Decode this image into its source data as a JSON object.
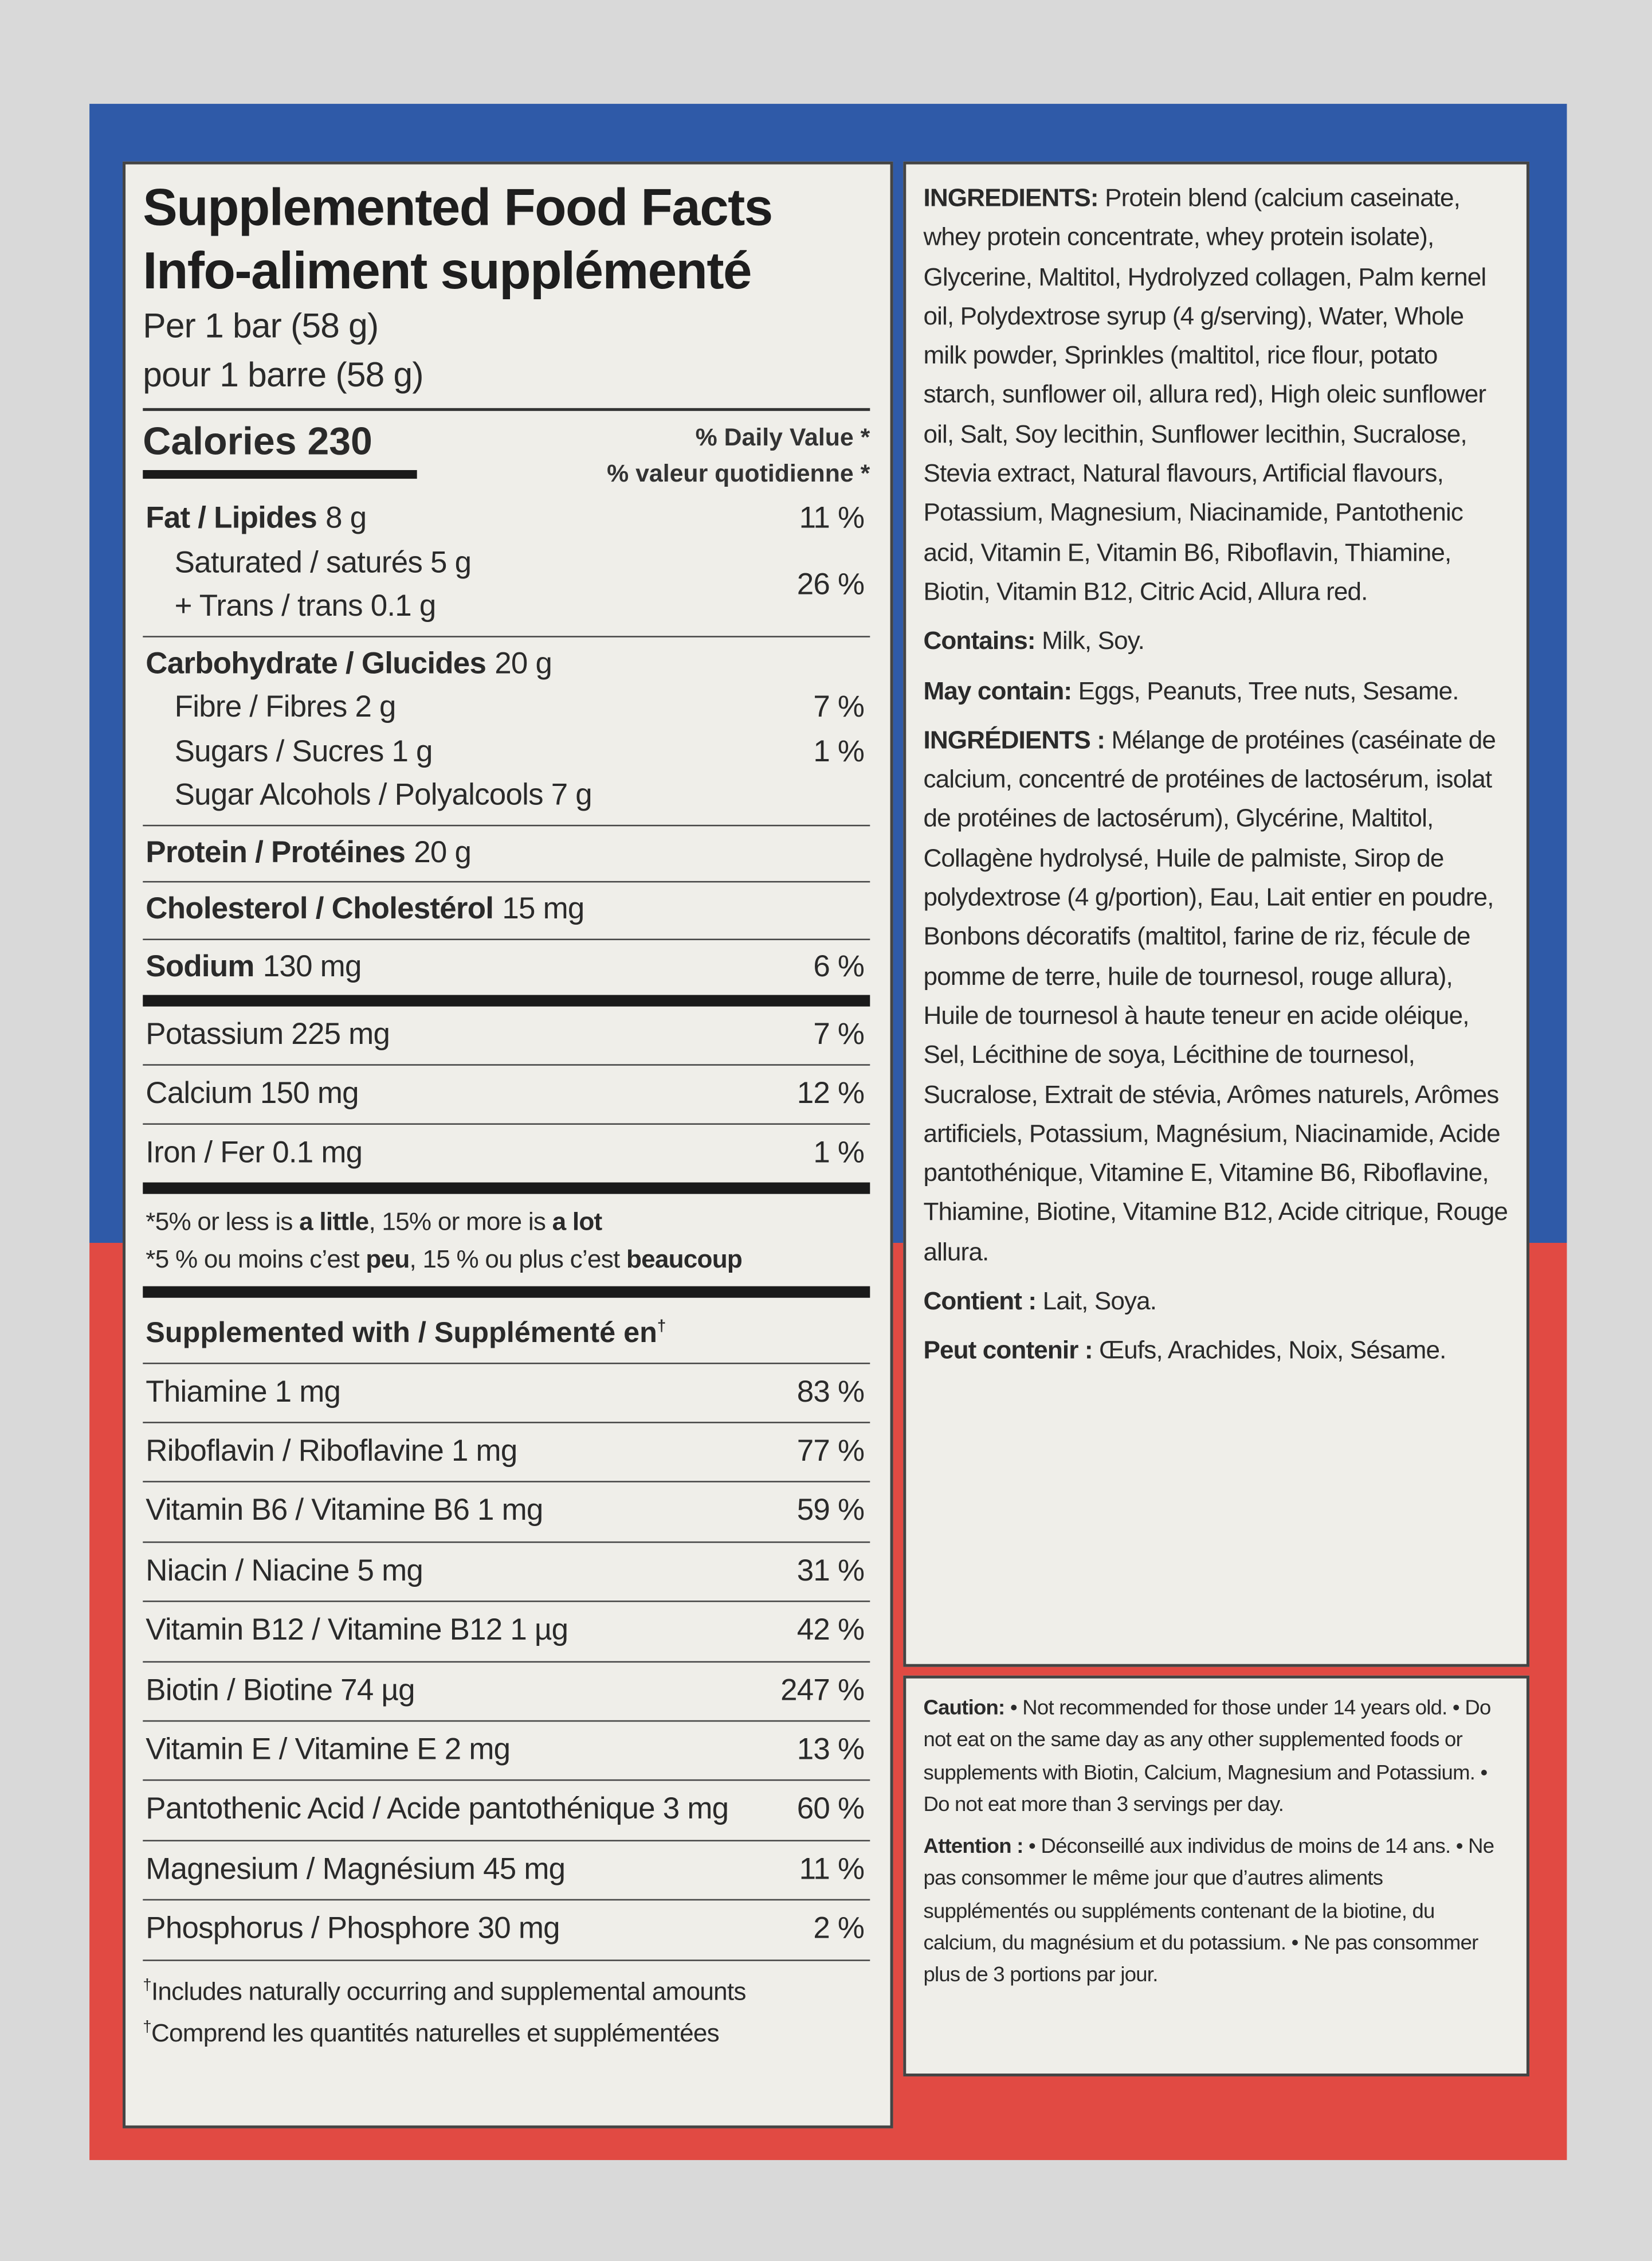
{
  "facts": {
    "title": "Supplemented Food Facts",
    "title_fr": "Info-aliment supplémenté",
    "serving": "Per 1 bar (58 g)",
    "serving_fr": "pour 1 barre (58 g)",
    "calories": "Calories 230",
    "dv_header": "% Daily Value",
    "dv_header_fr": "% valeur quotidienne",
    "dv_star": "*",
    "sections": [
      [
        {
          "bold": "Fat / Lipides",
          "text": "8 g",
          "dv": "11 %"
        },
        {
          "text": "Saturated / saturés 5 g\n+ Trans / trans 0.1 g",
          "dv": "26 %",
          "indent": true
        }
      ],
      [
        {
          "bold": "Carbohydrate / Glucides",
          "text": "20 g"
        },
        {
          "text": "Fibre / Fibres 2 g",
          "dv": "7 %",
          "indent": true
        },
        {
          "text": "Sugars / Sucres 1 g",
          "dv": "1 %",
          "indent": true
        },
        {
          "text": "Sugar Alcohols / Polyalcools 7 g",
          "indent": true
        }
      ],
      [
        {
          "bold": "Protein / Protéines",
          "text": "20 g"
        }
      ],
      [
        {
          "bold": "Cholesterol / Cholestérol",
          "text": "15 mg"
        }
      ],
      [
        {
          "bold": "Sodium",
          "text": "130 mg",
          "dv": "6 %"
        }
      ]
    ],
    "minerals": [
      {
        "text": "Potassium 225 mg",
        "dv": "7 %"
      },
      {
        "text": "Calcium 150 mg",
        "dv": "12 %"
      },
      {
        "text": "Iron / Fer 0.1 mg",
        "dv": "1 %"
      }
    ],
    "footnotes": [
      [
        {
          "t": "*5% or less is "
        },
        {
          "b": "a little"
        },
        {
          "t": ", 15% or more is "
        },
        {
          "b": "a lot"
        }
      ],
      [
        {
          "t": "*5 % ou moins c’est "
        },
        {
          "b": "peu"
        },
        {
          "t": ", 15 % ou plus c’est "
        },
        {
          "b": "beaucoup"
        }
      ]
    ],
    "supplemented_header": "Supplemented with / Supplémenté en",
    "dagger": "†",
    "supplements": [
      {
        "text": "Thiamine 1 mg",
        "dv": "83 %"
      },
      {
        "text": "Riboflavin / Riboflavine 1 mg",
        "dv": "77 %"
      },
      {
        "text": "Vitamin B6 / Vitamine B6 1 mg",
        "dv": "59 %"
      },
      {
        "text": "Niacin / Niacine 5 mg",
        "dv": "31 %"
      },
      {
        "text": "Vitamin B12 / Vitamine B12 1 µg",
        "dv": "42 %"
      },
      {
        "text": "Biotin / Biotine 74 µg",
        "dv": "247 %"
      },
      {
        "text": "Vitamin E / Vitamine E 2 mg",
        "dv": "13 %"
      },
      {
        "text": "Pantothenic Acid / Acide pantothénique 3 mg",
        "dv": "60 %"
      },
      {
        "text": "Magnesium / Magnésium 45 mg",
        "dv": "11 %"
      },
      {
        "text": "Phosphorus / Phosphore 30 mg",
        "dv": "2 %"
      }
    ],
    "bottom_notes": [
      "Includes naturally occurring and supplemental amounts",
      "Comprend les quantités naturelles et supplémentées"
    ]
  },
  "ingredients": [
    [
      {
        "b": "INGREDIENTS:"
      },
      {
        "t": " Protein blend (calcium caseinate, whey protein concentrate, whey protein isolate), Glycerine, Maltitol, Hydrolyzed collagen, Palm kernel oil, Polydextrose syrup (4 g/serving), Water, Whole milk powder, Sprinkles (maltitol, rice flour, potato starch, sunflower oil, allura red), High oleic sunflower oil, Salt, Soy lecithin, Sunflower lecithin, Sucralose, Stevia extract, Natural flavours, Artificial flavours, Potassium, Magnesium, Niacinamide, Pantothenic acid, Vitamin E, Vitamin B6, Riboflavin, Thiamine, Biotin, Vitamin B12, Citric Acid, Allura red."
      }
    ],
    [
      {
        "b": "Contains:"
      },
      {
        "t": " Milk, Soy."
      }
    ],
    [
      {
        "b": "May contain:"
      },
      {
        "t": " Eggs, Peanuts, Tree nuts, Sesame."
      }
    ],
    [
      {
        "b": "INGRÉDIENTS :"
      },
      {
        "t": " Mélange de protéines (caséinate de calcium, concentré de protéines de lactosérum, isolat de protéines de lactosérum), Glycérine, Maltitol, Collagène hydrolysé, Huile de palmiste, Sirop de polydextrose (4 g/portion), Eau, Lait entier en poudre, Bonbons décoratifs (maltitol, farine de riz, fécule de pomme de terre, huile de tournesol, rouge allura), Huile de tournesol à haute teneur en acide oléique, Sel, Lécithine de soya, Lécithine de tournesol, Sucralose, Extrait de stévia, Arômes naturels, Arômes artificiels, Potassium, Magnésium, Niacinamide, Acide pantothénique, Vitamine E, Vitamine B6, Riboflavine, Thiamine, Biotine, Vitamine B12, Acide citrique, Rouge allura."
      }
    ],
    [
      {
        "b": "Contient :"
      },
      {
        "t": " Lait, Soya."
      }
    ],
    [
      {
        "b": "Peut contenir :"
      },
      {
        "t": " Œufs, Arachides, Noix, Sésame."
      }
    ]
  ],
  "caution": [
    [
      {
        "b": "Caution:"
      },
      {
        "t": " • Not recommended for those under 14 years old. • Do not eat on the same day as any other supplemented foods or supplements with Biotin, Calcium, Magnesium and Potassium. • Do not eat more than 3 servings per day."
      }
    ],
    [
      {
        "b": "Attention :"
      },
      {
        "t": " • Déconseillé aux individus de moins de 14 ans. • Ne pas consommer le même jour que d’autres aliments supplémentés ou suppléments contenant de la biotine, du calcium, du magnésium et du potassium. • Ne pas consommer plus de 3 portions par jour."
      }
    ]
  ]
}
